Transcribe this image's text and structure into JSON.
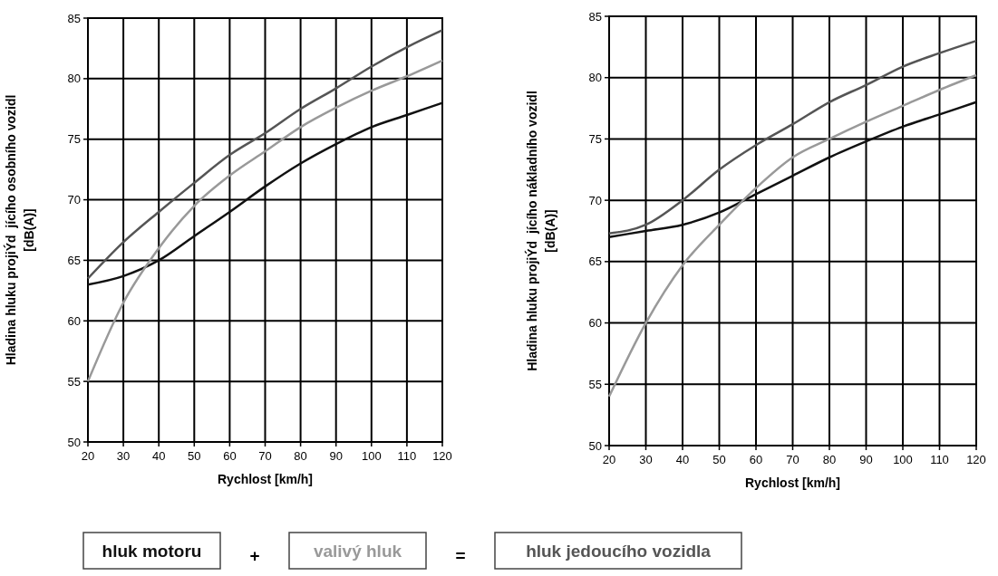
{
  "chart_data": [
    {
      "type": "line",
      "xlabel": "Rychlost [km/h]",
      "ylabel": "Hladina hluku projiÝd  jícího osobního vozidl\n[dB(A)]",
      "x": [
        20,
        30,
        40,
        50,
        60,
        70,
        80,
        90,
        100,
        110,
        120
      ],
      "xlim": [
        20,
        120
      ],
      "xticks": [
        20,
        30,
        40,
        50,
        60,
        70,
        80,
        90,
        100,
        110,
        120
      ],
      "ylim": [
        50,
        85
      ],
      "yticks": [
        50,
        55,
        60,
        65,
        70,
        75,
        80,
        85
      ],
      "grid": true,
      "legend": "bottom",
      "annotations": [
        "+",
        "="
      ],
      "series": [
        {
          "name": "hluk motoru",
          "color": "#111111",
          "values": [
            63,
            63.7,
            65,
            67,
            69,
            71.1,
            73,
            74.6,
            76,
            77,
            78
          ]
        },
        {
          "name": "valivý hluk",
          "color": "#999999",
          "values": [
            55,
            61.5,
            66,
            69.5,
            72,
            74,
            76,
            77.6,
            79,
            80.2,
            81.5
          ]
        },
        {
          "name": "hluk jedoucího vozidla",
          "color": "#555555",
          "values": [
            63.5,
            66.5,
            69,
            71.4,
            73.7,
            75.5,
            77.5,
            79.2,
            81,
            82.6,
            84
          ]
        }
      ]
    },
    {
      "type": "line",
      "xlabel": "Rychlost [km/h]",
      "ylabel": "Hladina hluku projiÝd  jícího nákladního vozidl\n[dB(A)]",
      "x": [
        20,
        30,
        40,
        50,
        60,
        70,
        80,
        90,
        100,
        110,
        120
      ],
      "xlim": [
        20,
        120
      ],
      "xticks": [
        20,
        30,
        40,
        50,
        60,
        70,
        80,
        90,
        100,
        110,
        120
      ],
      "ylim": [
        50,
        85
      ],
      "yticks": [
        50,
        55,
        60,
        65,
        70,
        75,
        80,
        85
      ],
      "grid": true,
      "series": [
        {
          "color": "#111111",
          "values": [
            67,
            67.5,
            68,
            69,
            70.5,
            72,
            73.5,
            74.8,
            76,
            77,
            78
          ]
        },
        {
          "color": "#999999",
          "values": [
            54,
            60,
            64.7,
            68,
            71,
            73.5,
            75,
            76.4,
            77.7,
            79,
            80.2
          ]
        },
        {
          "color": "#555555",
          "values": [
            67.3,
            68,
            70,
            72.5,
            74.5,
            76.2,
            78,
            79.4,
            80.9,
            82,
            83
          ]
        }
      ]
    }
  ]
}
